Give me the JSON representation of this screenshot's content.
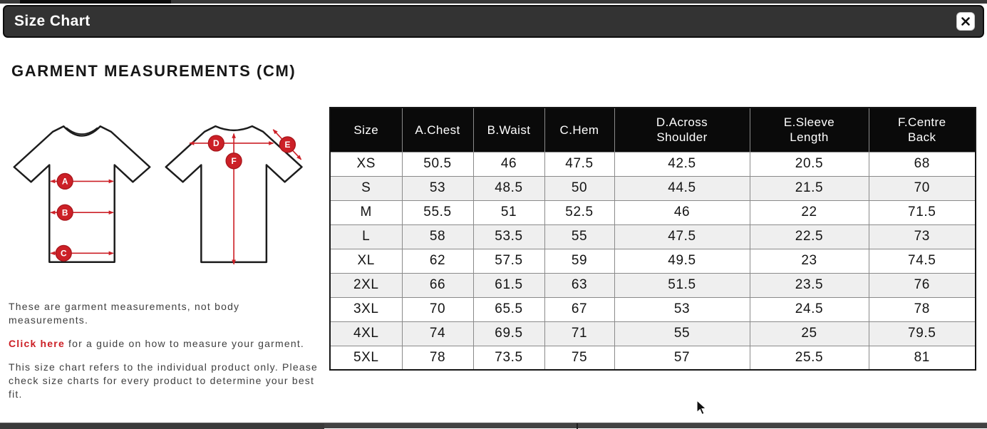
{
  "modal": {
    "title": "Size Chart"
  },
  "heading": "GARMENT MEASUREMENTS (CM)",
  "diagram": {
    "front_labels": [
      "A",
      "B",
      "C"
    ],
    "back_labels": [
      "D",
      "E",
      "F"
    ]
  },
  "notes": {
    "note1": "These are garment measurements, not body measurements.",
    "link_text": "Click here",
    "note2_rest": " for a guide on how to measure your garment.",
    "note3": "This size chart refers to the individual product only. Please check size charts for every product to determine your best fit."
  },
  "table": {
    "headers": [
      [
        "Size"
      ],
      [
        "A.Chest"
      ],
      [
        "B.Waist"
      ],
      [
        "C.Hem"
      ],
      [
        "D.Across",
        "Shoulder"
      ],
      [
        "E.Sleeve",
        "Length"
      ],
      [
        "F.Centre",
        "Back"
      ]
    ],
    "rows": [
      {
        "size": "XS",
        "values": [
          "50.5",
          "46",
          "47.5",
          "42.5",
          "20.5",
          "68"
        ]
      },
      {
        "size": "S",
        "values": [
          "53",
          "48.5",
          "50",
          "44.5",
          "21.5",
          "70"
        ]
      },
      {
        "size": "M",
        "values": [
          "55.5",
          "51",
          "52.5",
          "46",
          "22",
          "71.5"
        ]
      },
      {
        "size": "L",
        "values": [
          "58",
          "53.5",
          "55",
          "47.5",
          "22.5",
          "73"
        ]
      },
      {
        "size": "XL",
        "values": [
          "62",
          "57.5",
          "59",
          "49.5",
          "23",
          "74.5"
        ]
      },
      {
        "size": "2XL",
        "values": [
          "66",
          "61.5",
          "63",
          "51.5",
          "23.5",
          "76"
        ]
      },
      {
        "size": "3XL",
        "values": [
          "70",
          "65.5",
          "67",
          "53",
          "24.5",
          "78"
        ]
      },
      {
        "size": "4XL",
        "values": [
          "74",
          "69.5",
          "71",
          "55",
          "25",
          "79.5"
        ]
      },
      {
        "size": "5XL",
        "values": [
          "78",
          "73.5",
          "75",
          "57",
          "25.5",
          "81"
        ]
      }
    ]
  },
  "icons": {
    "close": "x-mark"
  },
  "colors": {
    "accent_red": "#cc2027",
    "modal_header_bg": "#333333",
    "table_header_bg": "#0a0a0a",
    "row_stripe": "#efefef",
    "link_red": "#cc1f25"
  }
}
